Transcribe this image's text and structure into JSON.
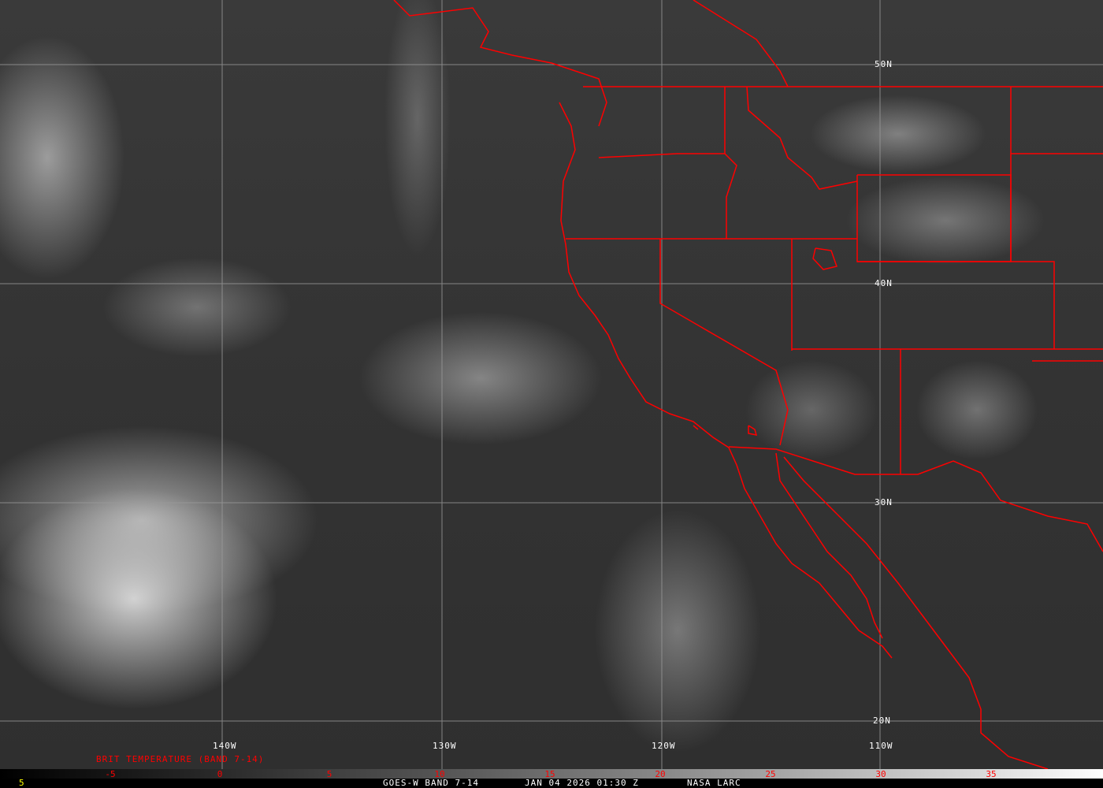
{
  "image": {
    "type": "satellite imagery",
    "band": "GOES-W BAND 7-14",
    "overlay_color": "#ff0000",
    "grid_color": "#9a9a9a"
  },
  "grid": {
    "longitude_labels": [
      "140W",
      "130W",
      "120W",
      "110W"
    ],
    "latitude_labels": [
      "50N",
      "40N",
      "30N",
      "20N"
    ]
  },
  "colorbar": {
    "title": "BRIT TEMPERATURE (BAND 7-14)",
    "ticks": [
      "-5",
      "0",
      "5",
      "10",
      "15",
      "20",
      "25",
      "30",
      "35"
    ]
  },
  "footer": {
    "frame_number": "5",
    "satellite": "GOES-W BAND 7-14",
    "datetime": "JAN 04 2026 01:30 Z",
    "source": "NASA LARC"
  }
}
